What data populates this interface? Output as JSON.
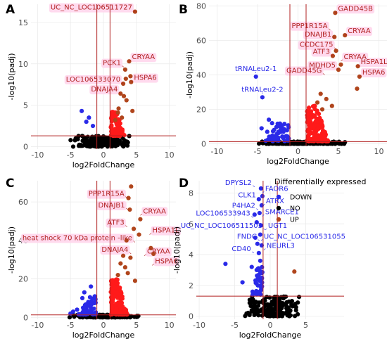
{
  "legend": {
    "title": "Differentially expressed",
    "items": [
      {
        "label": "DOWN",
        "color": "#2a2ae8"
      },
      {
        "label": "NO",
        "color": "#000000"
      },
      {
        "label": "UP",
        "color": "#b0451c"
      }
    ]
  },
  "colors": {
    "down": "#2a2ae8",
    "no": "#000000",
    "up": "#b0451c",
    "up_dense": "#ff1a1a",
    "threshold_line": "#b22222",
    "label_bg": "#ffd6ec",
    "label_text_red": "#b22222",
    "label_text_blue": "#2a2ae8"
  },
  "chart_data": [
    {
      "panel": "A",
      "type": "scatter",
      "xlabel": "log2FoldChange",
      "ylabel": "-log10(padj)",
      "xlim": [
        -11,
        11
      ],
      "ylim": [
        -0.3,
        17.2
      ],
      "xticks": [
        -10,
        -5,
        0,
        5,
        10
      ],
      "yticks": [
        0,
        5,
        10,
        15
      ],
      "vlines": [
        -1,
        1
      ],
      "hline": 1.3,
      "grid": true,
      "up": [
        [
          4.8,
          16.3
        ],
        [
          3.9,
          10.3
        ],
        [
          3.3,
          9.3
        ],
        [
          3.4,
          8.2
        ],
        [
          3.0,
          7.6
        ],
        [
          4.1,
          8.5
        ],
        [
          4.2,
          7.8
        ],
        [
          2.6,
          6.4
        ],
        [
          3.1,
          6.1
        ],
        [
          2.3,
          4.6
        ],
        [
          3.5,
          5.6
        ],
        [
          2.2,
          4.1
        ],
        [
          4.4,
          4.3
        ],
        [
          2.8,
          3.5
        ],
        [
          1.8,
          3.2
        ]
      ],
      "up_dense": {
        "xmin": 1.1,
        "xmax": 3.2,
        "ymin": 1.3,
        "ymax": 4.2,
        "n": 80
      },
      "down": [
        [
          -3.3,
          4.3
        ],
        [
          -2.2,
          3.5
        ],
        [
          -2.6,
          3.0
        ],
        [
          -1.6,
          2.5
        ]
      ],
      "no": {
        "xmin": -5.2,
        "xmax": 4.2,
        "ymin": 0,
        "ymax": 1.3,
        "n": 180
      },
      "labels": [
        {
          "text": "UC_NC_LOC106511727",
          "color": "red",
          "x": 4.8,
          "y": 16.3,
          "anchor": "end"
        },
        {
          "text": "CRYAA",
          "color": "red",
          "x": 3.9,
          "y": 10.3,
          "anchor": "start"
        },
        {
          "text": "PCK1",
          "color": "red",
          "x": 3.1,
          "y": 9.6,
          "anchor": "end"
        },
        {
          "text": "LOC106533070",
          "color": "red",
          "x": 3.0,
          "y": 7.6,
          "anchor": "end"
        },
        {
          "text": "HSPA6",
          "color": "red",
          "x": 4.2,
          "y": 7.8,
          "anchor": "start"
        },
        {
          "text": "DNAJA4",
          "color": "red",
          "x": 2.6,
          "y": 6.4,
          "anchor": "end"
        }
      ]
    },
    {
      "panel": "B",
      "type": "scatter",
      "xlabel": "log2FoldChange",
      "ylabel": "-log10(padj)",
      "xlim": [
        -11,
        11
      ],
      "ylim": [
        -1,
        81
      ],
      "xticks": [
        -10,
        -5,
        0,
        5,
        10
      ],
      "yticks": [
        0,
        20,
        40,
        60,
        80
      ],
      "vlines": [
        -1,
        1
      ],
      "hline": 1.3,
      "grid": true,
      "up": [
        [
          4.6,
          76
        ],
        [
          5.8,
          63
        ],
        [
          4.5,
          62
        ],
        [
          4.7,
          54
        ],
        [
          4.3,
          51
        ],
        [
          5.3,
          46
        ],
        [
          7.4,
          45
        ],
        [
          5.0,
          43
        ],
        [
          7.6,
          39
        ],
        [
          7.3,
          32
        ],
        [
          2.8,
          29
        ],
        [
          3.5,
          26
        ],
        [
          4.2,
          22
        ],
        [
          2.4,
          24
        ],
        [
          3.0,
          20
        ]
      ],
      "up_dense": {
        "xmin": 1.1,
        "xmax": 3.8,
        "ymin": 1.5,
        "ymax": 22,
        "n": 170
      },
      "down": [
        [
          -5.2,
          39
        ],
        [
          -4.4,
          27
        ],
        [
          -3.6,
          14
        ],
        [
          -3.2,
          12
        ],
        [
          -2.2,
          10
        ],
        [
          -4.5,
          9
        ],
        [
          -3.8,
          7
        ],
        [
          -2.7,
          4
        ]
      ],
      "down_dense": {
        "xmin": -4.2,
        "xmax": -1.1,
        "ymin": 1.5,
        "ymax": 12,
        "n": 55
      },
      "no": {
        "xmin": -5.5,
        "xmax": 6.5,
        "ymin": 0,
        "ymax": 1.3,
        "n": 200
      },
      "labels": [
        {
          "text": "GADD45B",
          "color": "red",
          "x": 4.6,
          "y": 76,
          "anchor": "start"
        },
        {
          "text": "PPP1R15A",
          "color": "red",
          "x": 4.0,
          "y": 66,
          "anchor": "end"
        },
        {
          "text": "DNAJB1",
          "color": "red",
          "x": 4.5,
          "y": 61,
          "anchor": "end"
        },
        {
          "text": "CRYAA",
          "color": "red",
          "x": 5.8,
          "y": 63,
          "anchor": "start"
        },
        {
          "text": "CCDC175",
          "color": "red",
          "x": 4.7,
          "y": 55,
          "anchor": "end"
        },
        {
          "text": "ATF3",
          "color": "red",
          "x": 4.3,
          "y": 51,
          "anchor": "end"
        },
        {
          "text": "CRYAA",
          "color": "red",
          "x": 5.3,
          "y": 48,
          "anchor": "start"
        },
        {
          "text": "MDHD5",
          "color": "red",
          "x": 5.0,
          "y": 43,
          "anchor": "end"
        },
        {
          "text": "HSPA1L",
          "color": "red",
          "x": 7.4,
          "y": 45,
          "anchor": "start"
        },
        {
          "text": "GADD45G",
          "color": "red",
          "x": 3.3,
          "y": 40,
          "anchor": "end"
        },
        {
          "text": "HSPA6",
          "color": "red",
          "x": 7.6,
          "y": 39,
          "anchor": "start"
        },
        {
          "text": "tRNALeu2-1",
          "color": "blue",
          "x": -5.2,
          "y": 41,
          "anchor": "middle"
        },
        {
          "text": "tRNALeu2-2",
          "color": "blue",
          "x": -4.4,
          "y": 29,
          "anchor": "middle"
        }
      ]
    },
    {
      "panel": "C",
      "type": "scatter",
      "xlabel": "log2FoldChange",
      "ylabel": "-log10(padj)",
      "xlim": [
        -11,
        11
      ],
      "ylim": [
        -1,
        71
      ],
      "xticks": [
        -10,
        -5,
        0,
        5,
        10
      ],
      "yticks": [
        0,
        20,
        40,
        60
      ],
      "vlines": [
        -1,
        1
      ],
      "hline": 1.3,
      "grid": true,
      "up": [
        [
          4.2,
          68
        ],
        [
          3.8,
          62
        ],
        [
          4.0,
          56
        ],
        [
          5.6,
          51
        ],
        [
          4.6,
          46
        ],
        [
          5.4,
          43
        ],
        [
          3.5,
          40
        ],
        [
          7.2,
          36
        ],
        [
          7.6,
          33
        ],
        [
          3.0,
          32
        ],
        [
          4.1,
          31
        ],
        [
          2.6,
          28
        ],
        [
          3.3,
          26
        ],
        [
          2.2,
          22
        ],
        [
          3.7,
          23
        ],
        [
          4.8,
          19
        ]
      ],
      "up_dense": {
        "xmin": 1.1,
        "xmax": 3.6,
        "ymin": 1.5,
        "ymax": 20,
        "n": 160
      },
      "down": [
        [
          -4.0,
          4
        ],
        [
          -1.9,
          16
        ],
        [
          -2.9,
          13
        ],
        [
          -3.2,
          10
        ],
        [
          -2.3,
          8
        ],
        [
          -4.6,
          3
        ],
        [
          -5.0,
          2
        ]
      ],
      "down_dense": {
        "xmin": -3.8,
        "xmax": -1.1,
        "ymin": 1.5,
        "ymax": 11,
        "n": 45
      },
      "no": {
        "xmin": -5.2,
        "xmax": 5.5,
        "ymin": 0,
        "ymax": 1.3,
        "n": 200
      },
      "labels": [
        {
          "text": "PPP1R15A",
          "color": "red",
          "x": 3.6,
          "y": 62,
          "anchor": "end"
        },
        {
          "text": "DNAJB1",
          "color": "red",
          "x": 3.7,
          "y": 56,
          "anchor": "end"
        },
        {
          "text": "CRYAA",
          "color": "red",
          "x": 5.6,
          "y": 53,
          "anchor": "start"
        },
        {
          "text": "ATF3",
          "color": "red",
          "x": 3.6,
          "y": 47,
          "anchor": "end"
        },
        {
          "text": "HSPA1L",
          "color": "red",
          "x": 7.0,
          "y": 43,
          "anchor": "start"
        },
        {
          "text": "heat shock 70 kDa protein -like",
          "color": "red",
          "x": 4.8,
          "y": 39,
          "anchor": "end"
        },
        {
          "text": "DNAJA4",
          "color": "red",
          "x": 4.2,
          "y": 33,
          "anchor": "end"
        },
        {
          "text": "CRYAA",
          "color": "red",
          "x": 6.2,
          "y": 32,
          "anchor": "start"
        },
        {
          "text": "HSPA6",
          "color": "red",
          "x": 7.4,
          "y": 27,
          "anchor": "start"
        }
      ]
    },
    {
      "panel": "D",
      "type": "scatter",
      "xlabel": "log2FoldChange",
      "ylabel": "-log10(padj)",
      "xlim": [
        -10.4,
        10.4
      ],
      "ylim": [
        -0.2,
        8.8
      ],
      "xticks": [
        -10,
        -5,
        0,
        5
      ],
      "yticks": [
        0,
        2,
        4,
        6,
        8
      ],
      "vlines": [
        -1,
        1
      ],
      "hline": 1.3,
      "grid": true,
      "up": [
        [
          3.4,
          2.9
        ]
      ],
      "down": [
        [
          -1.3,
          8.3
        ],
        [
          -1.1,
          7.8
        ],
        [
          -1.6,
          7.6
        ],
        [
          -1.2,
          7.2
        ],
        [
          -1.5,
          6.7
        ],
        [
          -2.2,
          6.6
        ],
        [
          -1.9,
          6.1
        ],
        [
          -1.3,
          5.9
        ],
        [
          -1.4,
          5.3
        ],
        [
          -2.1,
          5.1
        ],
        [
          -1.8,
          4.7
        ],
        [
          -1.2,
          4.6
        ],
        [
          -1.6,
          4.1
        ],
        [
          -6.3,
          3.4
        ],
        [
          -2.6,
          3.2
        ],
        [
          -1.4,
          3.6
        ],
        [
          -1.9,
          3.0
        ],
        [
          -1.2,
          2.8
        ],
        [
          -3.9,
          2.2
        ]
      ],
      "down_dense": {
        "xmin": -2.6,
        "xmax": -1.1,
        "ymin": 1.4,
        "ymax": 3.2,
        "n": 35
      },
      "no": {
        "xmin": -4.0,
        "xmax": 4.5,
        "ymin": 0,
        "ymax": 1.3,
        "n": 180
      },
      "labels": [
        {
          "text": "DPYSL2",
          "color": "blue",
          "x": -2.2,
          "y": 8.4,
          "anchor": "end"
        },
        {
          "text": "FAOR6",
          "color": "blue",
          "x": -1.1,
          "y": 8.0,
          "anchor": "start"
        },
        {
          "text": "CLK1",
          "color": "blue",
          "x": -1.6,
          "y": 7.6,
          "anchor": "end"
        },
        {
          "text": "ATRX",
          "color": "blue",
          "x": -1.0,
          "y": 7.2,
          "anchor": "start"
        },
        {
          "text": "P4HA2",
          "color": "blue",
          "x": -1.7,
          "y": 6.9,
          "anchor": "end"
        },
        {
          "text": "LOC106533943",
          "color": "blue",
          "x": -2.4,
          "y": 6.4,
          "anchor": "end"
        },
        {
          "text": "SMARCE1",
          "color": "blue",
          "x": -1.1,
          "y": 6.5,
          "anchor": "start"
        },
        {
          "text": "UC_NC_LOC106511503",
          "color": "blue",
          "x": -0.7,
          "y": 5.6,
          "anchor": "end"
        },
        {
          "text": "UGT1",
          "color": "blue",
          "x": -0.7,
          "y": 5.6,
          "anchor": "start"
        },
        {
          "text": "FNDC",
          "color": "blue",
          "x": -1.5,
          "y": 4.9,
          "anchor": "end"
        },
        {
          "text": "UC_NC_LOC106531055",
          "color": "blue",
          "x": -1.3,
          "y": 4.9,
          "anchor": "start"
        },
        {
          "text": "CD40",
          "color": "blue",
          "x": -2.3,
          "y": 4.1,
          "anchor": "end"
        },
        {
          "text": "NEURL3",
          "color": "blue",
          "x": -0.9,
          "y": 4.3,
          "anchor": "start"
        }
      ]
    }
  ]
}
